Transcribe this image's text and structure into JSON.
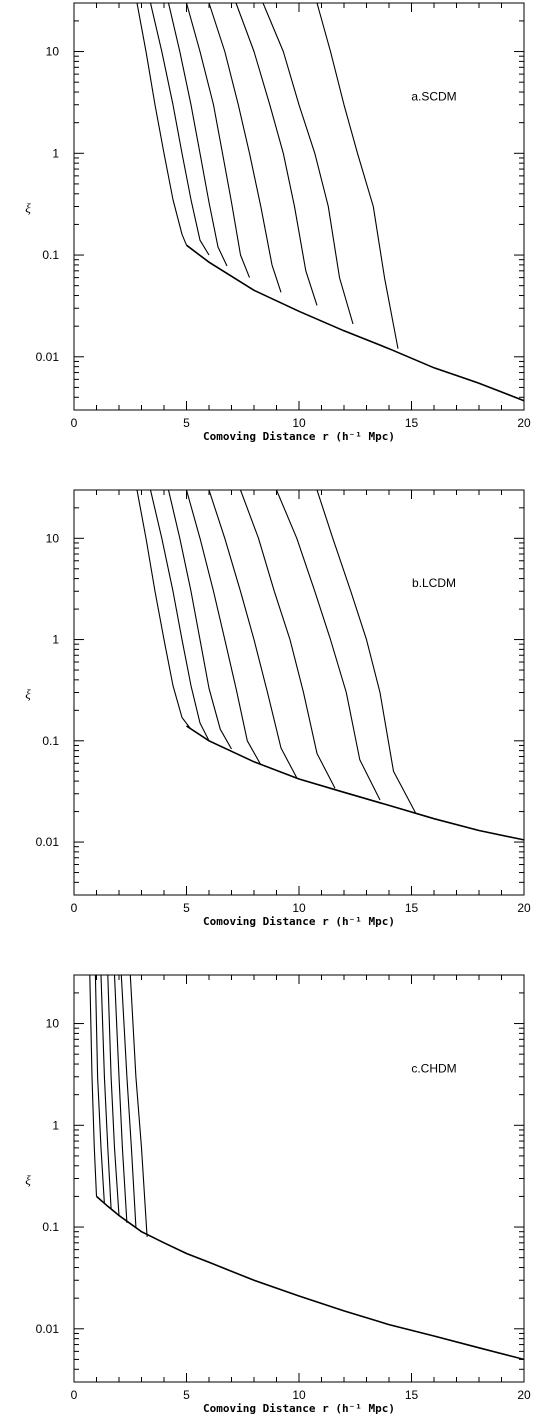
{
  "chart_data": [
    {
      "type": "line",
      "title": "",
      "annotation": "a.SCDM",
      "xlabel": "Comoving Distance r (h⁻¹ Mpc)",
      "ylabel": "ξ",
      "xlim": [
        0,
        20
      ],
      "ylim": [
        0.003,
        30
      ],
      "yscale": "log",
      "xticks": [
        "0",
        "5",
        "10",
        "15",
        "20"
      ],
      "yticks": [
        "0.01",
        "0.1",
        "1",
        "10"
      ],
      "envelope": {
        "x": [
          5,
          6,
          8,
          10,
          12,
          14,
          16,
          18,
          20
        ],
        "y": [
          0.125,
          0.085,
          0.045,
          0.028,
          0.018,
          0.012,
          0.0078,
          0.0055,
          0.0037
        ]
      },
      "series": [
        {
          "values": [
            [
              2.8,
              30
            ],
            [
              3.2,
              10
            ],
            [
              3.6,
              3
            ],
            [
              4.0,
              1.0
            ],
            [
              4.4,
              0.35
            ],
            [
              4.8,
              0.16
            ],
            [
              5.0,
              0.125
            ]
          ]
        },
        {
          "values": [
            [
              3.4,
              30
            ],
            [
              3.9,
              10
            ],
            [
              4.4,
              3
            ],
            [
              4.8,
              1.0
            ],
            [
              5.2,
              0.35
            ],
            [
              5.6,
              0.14
            ],
            [
              6.0,
              0.1
            ]
          ]
        },
        {
          "values": [
            [
              4.2,
              30
            ],
            [
              4.7,
              10
            ],
            [
              5.2,
              3
            ],
            [
              5.6,
              1.0
            ],
            [
              6.0,
              0.33
            ],
            [
              6.4,
              0.12
            ],
            [
              6.8,
              0.078
            ]
          ]
        },
        {
          "values": [
            [
              5.0,
              30
            ],
            [
              5.6,
              10
            ],
            [
              6.2,
              3
            ],
            [
              6.6,
              1.0
            ],
            [
              7.0,
              0.33
            ],
            [
              7.4,
              0.1
            ],
            [
              7.8,
              0.06
            ]
          ]
        },
        {
          "values": [
            [
              6.0,
              30
            ],
            [
              6.7,
              10
            ],
            [
              7.3,
              3
            ],
            [
              7.8,
              1.0
            ],
            [
              8.3,
              0.3
            ],
            [
              8.8,
              0.08
            ],
            [
              9.2,
              0.043
            ]
          ]
        },
        {
          "values": [
            [
              7.2,
              30
            ],
            [
              8.0,
              10
            ],
            [
              8.7,
              3
            ],
            [
              9.3,
              1.0
            ],
            [
              9.8,
              0.3
            ],
            [
              10.3,
              0.07
            ],
            [
              10.8,
              0.032
            ]
          ]
        },
        {
          "values": [
            [
              8.4,
              30
            ],
            [
              9.3,
              10
            ],
            [
              10.0,
              3
            ],
            [
              10.7,
              1.0
            ],
            [
              11.3,
              0.3
            ],
            [
              11.8,
              0.06
            ],
            [
              12.4,
              0.021
            ]
          ]
        },
        {
          "values": [
            [
              10.8,
              30
            ],
            [
              11.4,
              10
            ],
            [
              12.0,
              3
            ],
            [
              12.6,
              1.0
            ],
            [
              13.3,
              0.3
            ],
            [
              13.8,
              0.06
            ],
            [
              14.4,
              0.012
            ]
          ]
        }
      ]
    },
    {
      "type": "line",
      "title": "",
      "annotation": "b.LCDM",
      "xlabel": "Comoving Distance r (h⁻¹ Mpc)",
      "ylabel": "ξ",
      "xlim": [
        0,
        20
      ],
      "ylim": [
        0.003,
        30
      ],
      "yscale": "log",
      "xticks": [
        "0",
        "5",
        "10",
        "15",
        "20"
      ],
      "yticks": [
        "0.01",
        "0.1",
        "1",
        "10"
      ],
      "envelope": {
        "x": [
          5,
          6,
          8,
          10,
          12,
          14,
          16,
          18,
          20
        ],
        "y": [
          0.14,
          0.1,
          0.062,
          0.042,
          0.031,
          0.023,
          0.017,
          0.013,
          0.0105
        ]
      },
      "series": [
        {
          "values": [
            [
              2.8,
              30
            ],
            [
              3.2,
              10
            ],
            [
              3.6,
              3
            ],
            [
              4.0,
              1.0
            ],
            [
              4.4,
              0.35
            ],
            [
              4.8,
              0.17
            ],
            [
              5.2,
              0.13
            ]
          ]
        },
        {
          "values": [
            [
              3.4,
              30
            ],
            [
              3.9,
              10
            ],
            [
              4.4,
              3
            ],
            [
              4.8,
              1.0
            ],
            [
              5.2,
              0.35
            ],
            [
              5.6,
              0.15
            ],
            [
              6.0,
              0.1
            ]
          ]
        },
        {
          "values": [
            [
              4.2,
              30
            ],
            [
              4.7,
              10
            ],
            [
              5.2,
              3
            ],
            [
              5.6,
              1.0
            ],
            [
              6.0,
              0.33
            ],
            [
              6.5,
              0.13
            ],
            [
              7.0,
              0.083
            ]
          ]
        },
        {
          "values": [
            [
              5.0,
              30
            ],
            [
              5.6,
              10
            ],
            [
              6.2,
              3
            ],
            [
              6.7,
              1.0
            ],
            [
              7.2,
              0.33
            ],
            [
              7.7,
              0.1
            ],
            [
              8.3,
              0.058
            ]
          ]
        },
        {
          "values": [
            [
              6.0,
              30
            ],
            [
              6.7,
              10
            ],
            [
              7.4,
              3
            ],
            [
              8.0,
              1.0
            ],
            [
              8.6,
              0.3
            ],
            [
              9.2,
              0.085
            ],
            [
              9.9,
              0.043
            ]
          ]
        },
        {
          "values": [
            [
              7.4,
              30
            ],
            [
              8.2,
              10
            ],
            [
              8.9,
              3
            ],
            [
              9.6,
              1.0
            ],
            [
              10.2,
              0.3
            ],
            [
              10.8,
              0.075
            ],
            [
              11.6,
              0.034
            ]
          ]
        },
        {
          "values": [
            [
              9.0,
              30
            ],
            [
              9.9,
              10
            ],
            [
              10.7,
              3
            ],
            [
              11.4,
              1.0
            ],
            [
              12.1,
              0.3
            ],
            [
              12.7,
              0.065
            ],
            [
              13.6,
              0.026
            ]
          ]
        },
        {
          "values": [
            [
              10.8,
              30
            ],
            [
              11.5,
              10
            ],
            [
              12.3,
              3
            ],
            [
              13.0,
              1.0
            ],
            [
              13.6,
              0.3
            ],
            [
              14.2,
              0.05
            ],
            [
              15.2,
              0.019
            ]
          ]
        }
      ]
    },
    {
      "type": "line",
      "title": "",
      "annotation": "c.CHDM",
      "xlabel": "Comoving Distance r (h⁻¹ Mpc)",
      "ylabel": "ξ",
      "xlim": [
        0,
        20
      ],
      "ylim": [
        0.003,
        30
      ],
      "yscale": "log",
      "xticks": [
        "0",
        "5",
        "10",
        "15",
        "20"
      ],
      "yticks": [
        "0.01",
        "0.1",
        "1",
        "10"
      ],
      "envelope": {
        "x": [
          1.0,
          1.5,
          2,
          3,
          4,
          5,
          6,
          8,
          10,
          12,
          14,
          16,
          18,
          20
        ],
        "y": [
          0.2,
          0.16,
          0.13,
          0.09,
          0.07,
          0.055,
          0.045,
          0.03,
          0.021,
          0.015,
          0.011,
          0.0085,
          0.0065,
          0.005
        ]
      },
      "series": [
        {
          "values": [
            [
              0.7,
              30
            ],
            [
              0.8,
              3
            ],
            [
              0.9,
              0.6
            ],
            [
              1.0,
              0.2
            ]
          ]
        },
        {
          "values": [
            [
              0.95,
              30
            ],
            [
              1.05,
              3
            ],
            [
              1.2,
              0.6
            ],
            [
              1.35,
              0.17
            ]
          ]
        },
        {
          "values": [
            [
              1.2,
              30
            ],
            [
              1.35,
              3
            ],
            [
              1.5,
              0.6
            ],
            [
              1.65,
              0.15
            ]
          ]
        },
        {
          "values": [
            [
              1.5,
              30
            ],
            [
              1.65,
              3
            ],
            [
              1.8,
              0.6
            ],
            [
              2.0,
              0.13
            ]
          ]
        },
        {
          "values": [
            [
              1.8,
              30
            ],
            [
              2.0,
              3
            ],
            [
              2.15,
              0.6
            ],
            [
              2.35,
              0.11
            ]
          ]
        },
        {
          "values": [
            [
              2.1,
              30
            ],
            [
              2.35,
              3
            ],
            [
              2.55,
              0.6
            ],
            [
              2.75,
              0.1
            ]
          ]
        },
        {
          "values": [
            [
              2.5,
              30
            ],
            [
              2.75,
              3
            ],
            [
              3.0,
              0.6
            ],
            [
              3.25,
              0.08
            ]
          ]
        }
      ]
    }
  ]
}
